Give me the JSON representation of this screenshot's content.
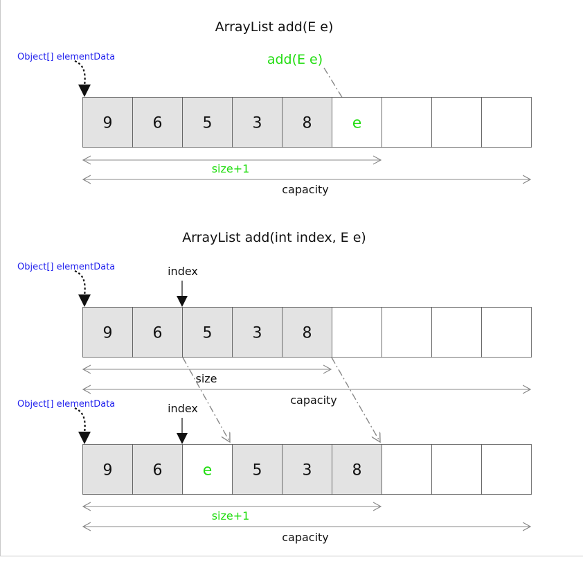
{
  "panel_1": {
    "title": "ArrayList add(E e)",
    "pointer_label": "Object[] elementData",
    "call_label": "add(E e)",
    "cells": [
      "9",
      "6",
      "5",
      "3",
      "8",
      "e",
      "",
      "",
      ""
    ],
    "size_label": "size+1",
    "capacity_label": "capacity"
  },
  "panel_2": {
    "title": "ArrayList add(int index, E e)",
    "before": {
      "pointer_label": "Object[] elementData",
      "index_label": "index",
      "cells": [
        "9",
        "6",
        "5",
        "3",
        "8",
        "",
        "",
        "",
        ""
      ],
      "size_label": "size",
      "capacity_label": "capacity"
    },
    "after": {
      "pointer_label": "Object[] elementData",
      "index_label": "index",
      "cells": [
        "9",
        "6",
        "e",
        "5",
        "3",
        "8",
        "",
        "",
        ""
      ],
      "size_label": "size+1",
      "capacity_label": "capacity"
    }
  },
  "colors": {
    "highlight": "#22dd11",
    "pointer_text": "#2222ee",
    "filled_cell": "#e3e3e3"
  }
}
